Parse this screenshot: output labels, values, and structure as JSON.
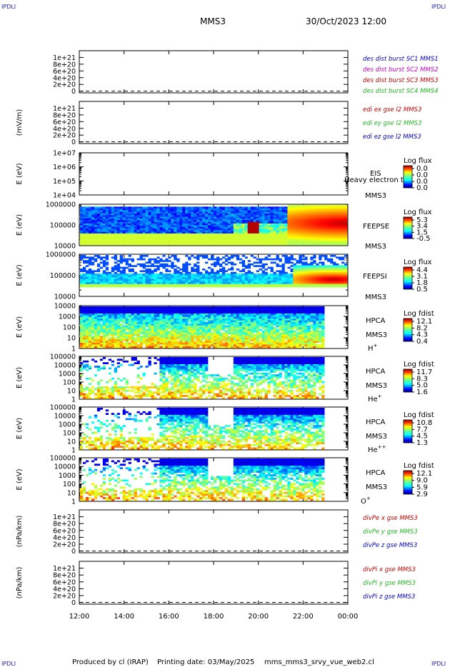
{
  "corners": {
    "top_left": "IPDLI",
    "top_right": "IPDLI",
    "bottom_left": "IPDLI",
    "bottom_right": "IPDLI"
  },
  "header": {
    "spacecraft": "MMS3",
    "datetime": "30/Oct/2023 12:00"
  },
  "footer": {
    "producer": "Produced by cl (IRAP)",
    "printing_date": "Printing date: 03/May/2025",
    "script": "mms_mms3_srvy_vue_web2.cl"
  },
  "colors": {
    "frame": "#000000",
    "legend_blue": "#0000cc",
    "legend_magenta": "#cc00cc",
    "legend_red": "#cc0000",
    "legend_green": "#22bb22"
  },
  "chart_data": {
    "type": "heatmap",
    "x_axis": {
      "ticks": [
        "12:00",
        "14:00",
        "16:00",
        "18:00",
        "20:00",
        "22:00",
        "00:00"
      ],
      "range_hours": [
        12,
        24
      ]
    },
    "panels": [
      {
        "id": "p1",
        "type": "line",
        "ylabel": "",
        "ylim": [
          -5e+19,
          1.2e+21
        ],
        "yticks": [
          "1e+21",
          "8e+20",
          "6e+20",
          "4e+20",
          "2e+20",
          "0"
        ],
        "legend": [
          {
            "text": "des dist burst SC1 MMS1",
            "color": "#0000cc"
          },
          {
            "text": "des dist burst SC2 MMS2",
            "color": "#cc00cc"
          },
          {
            "text": "des dist burst SC3 MMS3",
            "color": "#cc0000"
          },
          {
            "text": "des dist burst SC4 MMS4",
            "color": "#22bb22"
          }
        ]
      },
      {
        "id": "p2",
        "type": "line",
        "ylabel": "(mV/m)",
        "ylim": [
          -5e+19,
          1.2e+21
        ],
        "yticks": [
          "1e+21",
          "8e+20",
          "6e+20",
          "4e+20",
          "2e+20",
          "0"
        ],
        "legend": [
          {
            "text": "edi ex gse l2 MMS3",
            "color": "#cc0000"
          },
          {
            "text": "edi ey gse l2 MMS3",
            "color": "#22bb22"
          },
          {
            "text": "edi ez gse l2 MMS3",
            "color": "#0000cc"
          }
        ]
      },
      {
        "id": "p3",
        "type": "heatmap",
        "ylabel": "E (eV)",
        "log_decades": 3,
        "yticks": [
          "1e+07",
          "1e+06",
          "1e+05",
          "1e+04"
        ],
        "labels": [
          "EIS",
          "MMS3"
        ],
        "overlay_text": "Heavy electron to",
        "cbar_title": "Log flux",
        "cbar_ticks": [
          "0.0",
          "0.0",
          "0.0",
          "0.0"
        ]
      },
      {
        "id": "p4",
        "type": "heatmap",
        "ylabel": "E (eV)",
        "log_decades": 2,
        "yticks": [
          "1000000",
          "100000",
          "10000"
        ],
        "labels": [
          "FEEPSE",
          "MMS3"
        ],
        "cbar_title": "Log flux",
        "cbar_ticks": [
          "5.3",
          "3.4",
          "1.5",
          "-0.5"
        ]
      },
      {
        "id": "p5",
        "type": "heatmap",
        "ylabel": "E (eV)",
        "log_decades": 2,
        "yticks": [
          "1000000",
          "100000",
          "10000"
        ],
        "labels": [
          "FEEPSI",
          "MMS3"
        ],
        "cbar_title": "Log flux",
        "cbar_ticks": [
          "4.4",
          "3.1",
          "1.8",
          "0.5"
        ]
      },
      {
        "id": "p6",
        "type": "heatmap",
        "ylabel": "E (eV)",
        "log_decades": 4,
        "yticks": [
          "10000",
          "1000",
          "100",
          "10",
          "1"
        ],
        "labels": [
          "HPCA",
          "MMS3"
        ],
        "species": "H",
        "species_sup": "+",
        "cbar_title": "Log fdist",
        "cbar_ticks": [
          "12.1",
          "8.2",
          "4.3",
          "0.4"
        ]
      },
      {
        "id": "p7",
        "type": "heatmap",
        "ylabel": "E (eV)",
        "log_decades": 5,
        "yticks": [
          "100000",
          "10000",
          "1000",
          "100",
          "10",
          "1"
        ],
        "labels": [
          "HPCA",
          "MMS3"
        ],
        "species": "He",
        "species_sup": "+",
        "cbar_title": "Log fdist",
        "cbar_ticks": [
          "11.7",
          "8.3",
          "5.0",
          "1.6"
        ]
      },
      {
        "id": "p8",
        "type": "heatmap",
        "ylabel": "E (eV)",
        "log_decades": 5,
        "yticks": [
          "100000",
          "10000",
          "1000",
          "100",
          "10",
          "1"
        ],
        "labels": [
          "HPCA",
          "MMS3"
        ],
        "species": "He",
        "species_sup": "++",
        "cbar_title": "Log fdist",
        "cbar_ticks": [
          "10.8",
          "7.7",
          "4.5",
          "1.3"
        ]
      },
      {
        "id": "p9",
        "type": "heatmap",
        "ylabel": "E (eV)",
        "log_decades": 5,
        "yticks": [
          "100000",
          "10000",
          "1000",
          "100",
          "10",
          "1"
        ],
        "labels": [
          "HPCA",
          "MMS3"
        ],
        "species": "O",
        "species_sup": "+",
        "cbar_title": "Log fdist",
        "cbar_ticks": [
          "12.1",
          "9.0",
          "5.9",
          "2.9"
        ]
      },
      {
        "id": "p10",
        "type": "line",
        "ylabel": "(nPa/km)",
        "ylim": [
          -5e+19,
          1.2e+21
        ],
        "yticks": [
          "1e+21",
          "8e+20",
          "6e+20",
          "4e+20",
          "2e+20",
          "0"
        ],
        "legend": [
          {
            "text": "divPe x gse MMS3",
            "color": "#cc0000"
          },
          {
            "text": "divPe y gse MMS3",
            "color": "#22bb22"
          },
          {
            "text": "divPe z gse MMS3",
            "color": "#0000cc"
          }
        ]
      },
      {
        "id": "p11",
        "type": "line",
        "ylabel": "(nPa/km)",
        "ylim": [
          -5e+19,
          1.2e+21
        ],
        "yticks": [
          "1e+21",
          "8e+20",
          "6e+20",
          "4e+20",
          "2e+20",
          "0"
        ],
        "legend": [
          {
            "text": "divPi x gse MMS3",
            "color": "#cc0000"
          },
          {
            "text": "divPi y gse MMS3",
            "color": "#22bb22"
          },
          {
            "text": "divPi z gse MMS3",
            "color": "#0000cc"
          }
        ]
      }
    ]
  }
}
